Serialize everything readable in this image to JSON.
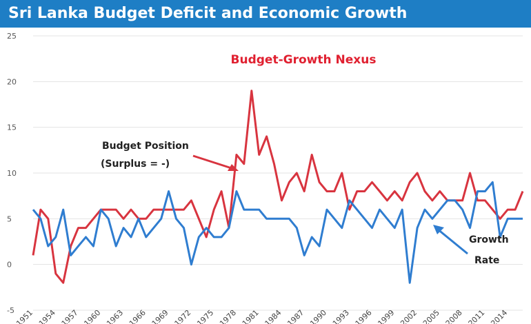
{
  "chart_data": {
    "type": "line",
    "title": "Sri Lanka Budget Deficit and Economic Growth",
    "subtitle": "Budget-Growth Nexus",
    "ylim": [
      -5,
      25
    ],
    "yticks": [
      "25",
      "20",
      "15",
      "10",
      "5",
      "0",
      "-5"
    ],
    "ytick_values": [
      25,
      20,
      15,
      10,
      5,
      0,
      -5
    ],
    "xlim": [
      1951,
      2016
    ],
    "xticks": [
      "1951",
      "1954",
      "1957",
      "1960",
      "1963",
      "1966",
      "1969",
      "1972",
      "1975",
      "1978",
      "1981",
      "1984",
      "1987",
      "1990",
      "1993",
      "1996",
      "1999",
      "2002",
      "2005",
      "2008",
      "2011",
      "2014"
    ],
    "xtick_values": [
      1951,
      1954,
      1957,
      1960,
      1963,
      1966,
      1969,
      1972,
      1975,
      1978,
      1981,
      1984,
      1987,
      1990,
      1993,
      1996,
      1999,
      2002,
      2005,
      2008,
      2011,
      2014
    ],
    "grid": "horizontal",
    "series": [
      {
        "name": "Budget Position (Surplus = -)",
        "color": "#d8343f",
        "x": [
          1951,
          1952,
          1953,
          1954,
          1955,
          1956,
          1957,
          1958,
          1959,
          1960,
          1961,
          1962,
          1963,
          1964,
          1965,
          1966,
          1967,
          1968,
          1969,
          1970,
          1971,
          1972,
          1973,
          1974,
          1975,
          1976,
          1977,
          1978,
          1979,
          1980,
          1981,
          1982,
          1983,
          1984,
          1985,
          1986,
          1987,
          1988,
          1989,
          1990,
          1991,
          1992,
          1993,
          1994,
          1995,
          1996,
          1997,
          1998,
          1999,
          2000,
          2001,
          2002,
          2003,
          2004,
          2005,
          2006,
          2007,
          2008,
          2009,
          2010,
          2011,
          2012,
          2013,
          2014,
          2015,
          2016
        ],
        "y": [
          1,
          6,
          5,
          -1,
          -2,
          2,
          4,
          4,
          5,
          6,
          6,
          6,
          5,
          6,
          5,
          5,
          6,
          6,
          6,
          6,
          6,
          7,
          5,
          3,
          6,
          8,
          4,
          12,
          11,
          19,
          12,
          14,
          11,
          7,
          9,
          10,
          8,
          12,
          9,
          8,
          8,
          10,
          6,
          8,
          8,
          9,
          8,
          7,
          8,
          7,
          9,
          10,
          8,
          7,
          8,
          7,
          7,
          7,
          10,
          7,
          7,
          6,
          5,
          6,
          6,
          8
        ]
      },
      {
        "name": "Growth Rate",
        "color": "#2f7dd0",
        "x": [
          1951,
          1952,
          1953,
          1954,
          1955,
          1956,
          1957,
          1958,
          1959,
          1960,
          1961,
          1962,
          1963,
          1964,
          1965,
          1966,
          1967,
          1968,
          1969,
          1970,
          1971,
          1972,
          1973,
          1974,
          1975,
          1976,
          1977,
          1978,
          1979,
          1980,
          1981,
          1982,
          1983,
          1984,
          1985,
          1986,
          1987,
          1988,
          1989,
          1990,
          1991,
          1992,
          1993,
          1994,
          1995,
          1996,
          1997,
          1998,
          1999,
          2000,
          2001,
          2002,
          2003,
          2004,
          2005,
          2006,
          2007,
          2008,
          2009,
          2010,
          2011,
          2012,
          2013,
          2014,
          2015,
          2016
        ],
        "y": [
          6,
          5,
          2,
          3,
          6,
          1,
          2,
          3,
          2,
          6,
          5,
          2,
          4,
          3,
          5,
          3,
          4,
          5,
          8,
          5,
          4,
          0,
          3,
          4,
          3,
          3,
          4,
          8,
          6,
          6,
          6,
          5,
          5,
          5,
          5,
          4,
          1,
          3,
          2,
          6,
          5,
          4,
          7,
          6,
          5,
          4,
          6,
          5,
          4,
          6,
          -2,
          4,
          6,
          5,
          6,
          7,
          7,
          6,
          4,
          8,
          8,
          9,
          3,
          5,
          5,
          5
        ]
      }
    ],
    "annotations": {
      "budget_line1": "Budget Position",
      "budget_line2": "(Surplus = -)",
      "growth_line1": "Growth",
      "growth_line2": "Rate"
    }
  }
}
